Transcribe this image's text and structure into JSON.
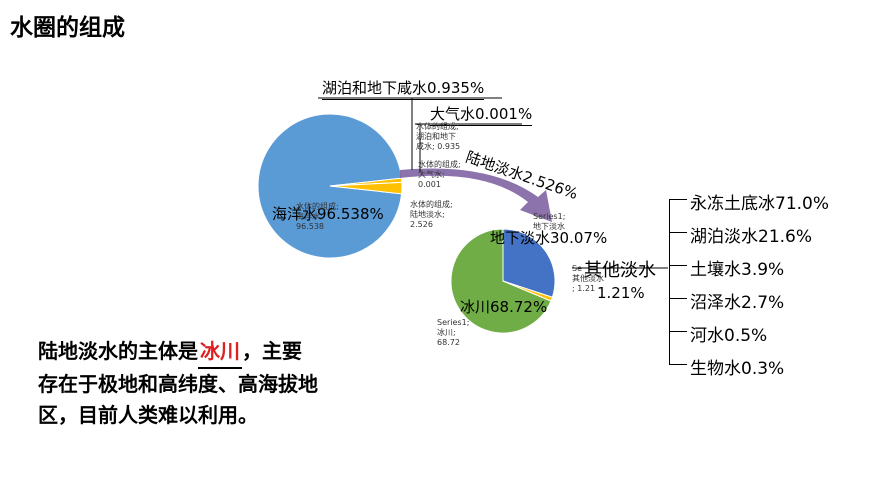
{
  "page_title": "水圈的组成",
  "labels": {
    "saline_lake": "湖泊和地下咸水0.935%",
    "atmosphere": "大气水0.001%",
    "land_fresh": "陆地淡水2.526%",
    "ocean": "海洋水96.538%",
    "groundwater": "地下淡水30.07%",
    "glacier": "冰川68.72%",
    "other_fresh_title": "其他淡水",
    "other_fresh_value": "1.21%"
  },
  "tiny_labels": {
    "saline": "水体的组成;\n湖泊和地下\n咸水; 0.935",
    "atmos": "水体的组成;\n大气水;\n0.001",
    "landfresh": "水体的组成;\n陆地淡水;\n2.526",
    "ocean": "水体的组成;\n海洋水;\n96.538",
    "ground": "Series1;\n地下淡水",
    "other": "Se\n其他淡水\n; 1.21",
    "glacier": "Series1;\n冰川;\n68.72"
  },
  "other_fresh_items": [
    "永冻土底冰71.0%",
    "湖泊淡水21.6%",
    "土壤水3.9%",
    "沼泽水2.7%",
    "河水0.5%",
    "生物水0.3%"
  ],
  "note": {
    "text_before": "陆地淡水的主体是",
    "answer": "冰川",
    "text_after": "，主要存在于极地和高纬度、高海拔地区，目前人类难以利用。"
  },
  "colors": {
    "ocean": "#5b9bd5",
    "yellow": "#ffc000",
    "glacier": "#70ad47",
    "groundwater": "#4472c4",
    "arrow": "#8064a2",
    "grey": "#a5a5a5",
    "answer": "#e02020"
  },
  "chart_data": [
    {
      "type": "pie",
      "categories": [
        "海洋水",
        "湖泊和地下咸水",
        "大气水",
        "陆地淡水"
      ],
      "values": [
        96.538,
        0.935,
        0.001,
        2.526
      ]
    },
    {
      "type": "pie",
      "categories": [
        "冰川",
        "地下淡水",
        "其他淡水"
      ],
      "values": [
        68.72,
        30.07,
        1.21
      ]
    }
  ]
}
